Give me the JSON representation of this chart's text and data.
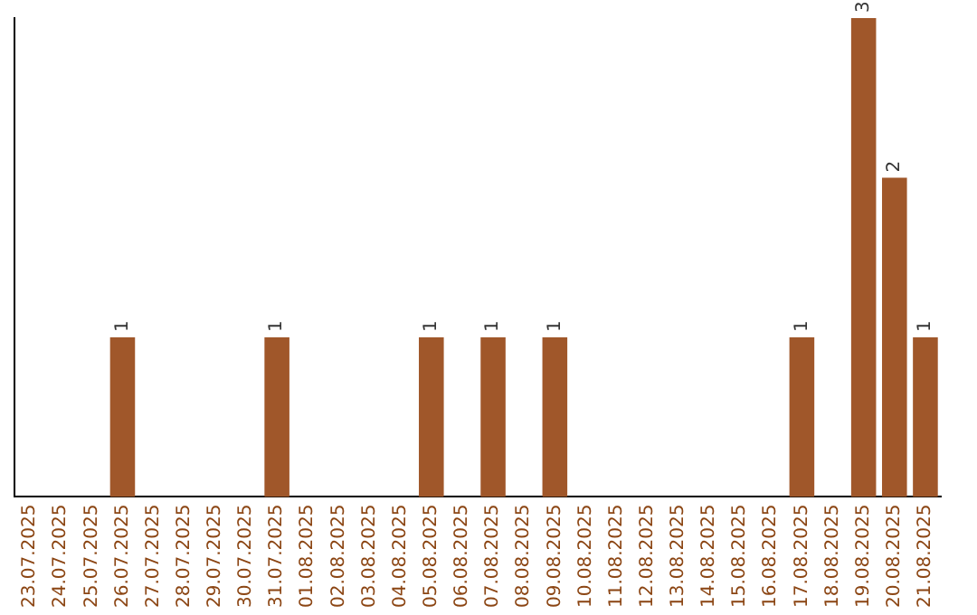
{
  "chart_data": {
    "type": "bar",
    "categories": [
      "23.07.2025",
      "24.07.2025",
      "25.07.2025",
      "26.07.2025",
      "27.07.2025",
      "28.07.2025",
      "29.07.2025",
      "30.07.2025",
      "31.07.2025",
      "01.08.2025",
      "02.08.2025",
      "03.08.2025",
      "04.08.2025",
      "05.08.2025",
      "06.08.2025",
      "07.08.2025",
      "08.08.2025",
      "09.08.2025",
      "10.08.2025",
      "11.08.2025",
      "12.08.2025",
      "13.08.2025",
      "14.08.2025",
      "15.08.2025",
      "16.08.2025",
      "17.08.2025",
      "18.08.2025",
      "19.08.2025",
      "20.08.2025",
      "21.08.2025"
    ],
    "values": [
      0,
      0,
      0,
      1,
      0,
      0,
      0,
      0,
      1,
      0,
      0,
      0,
      0,
      1,
      0,
      1,
      0,
      1,
      0,
      0,
      0,
      0,
      0,
      0,
      0,
      1,
      0,
      3,
      2,
      1
    ],
    "value_labels": [
      null,
      null,
      null,
      "1",
      null,
      null,
      null,
      null,
      "1",
      null,
      null,
      null,
      null,
      "1",
      null,
      "1",
      null,
      "1",
      null,
      null,
      null,
      null,
      null,
      null,
      null,
      "1",
      null,
      "3",
      "2",
      "1"
    ],
    "color": "#a0572a",
    "ylim": [
      0,
      3
    ],
    "grid": false,
    "legend": false,
    "tick_labels": "x"
  }
}
